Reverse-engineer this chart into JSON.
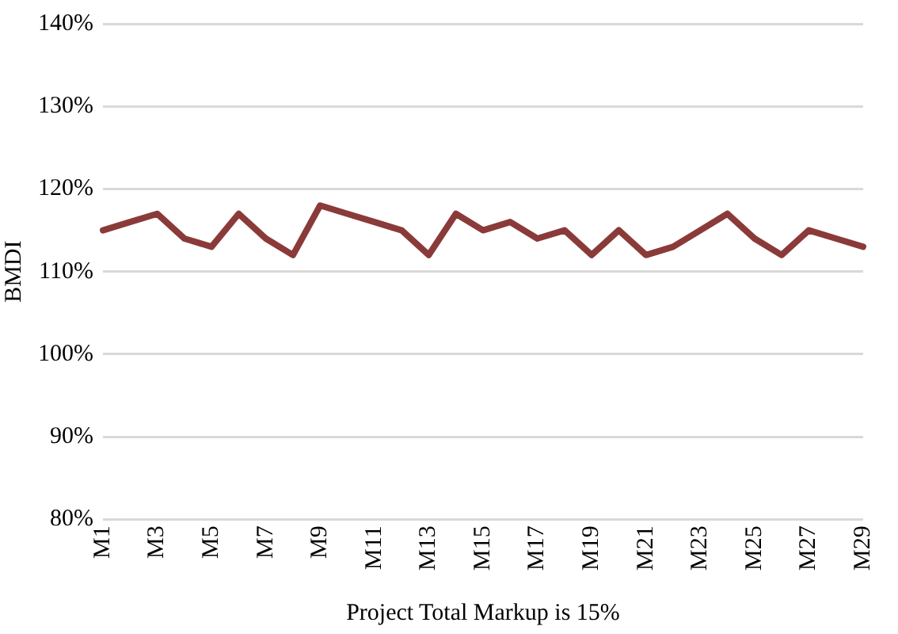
{
  "chart_data": {
    "type": "line",
    "xlabel": "Project Total Markup is 15%",
    "ylabel": "BMDI",
    "categories": [
      "M1",
      null,
      "M3",
      null,
      "M5",
      null,
      "M7",
      null,
      "M9",
      null,
      "M11",
      null,
      "M13",
      null,
      "M15",
      null,
      "M17",
      null,
      "M19",
      null,
      "M21",
      null,
      "M23",
      null,
      "M25",
      null,
      "M27",
      null,
      "M29"
    ],
    "series": [
      {
        "color": "#8b3a3a",
        "values": [
          115,
          116,
          117,
          114,
          113,
          117,
          114,
          112,
          118,
          117,
          116,
          115,
          112,
          117,
          115,
          116,
          114,
          115,
          112,
          115,
          112,
          113,
          115,
          117,
          114,
          112,
          115,
          114,
          113
        ]
      }
    ],
    "ylim": [
      80,
      140
    ],
    "yticks": [
      {
        "value": 80,
        "label": "80%"
      },
      {
        "value": 90,
        "label": "90%"
      },
      {
        "value": 100,
        "label": "100%"
      },
      {
        "value": 110,
        "label": "110%"
      },
      {
        "value": 120,
        "label": "120%"
      },
      {
        "value": 130,
        "label": "130%"
      },
      {
        "value": 140,
        "label": "140%"
      }
    ],
    "grid": "y",
    "legend": false,
    "marker": "none",
    "line_style": "solid"
  }
}
